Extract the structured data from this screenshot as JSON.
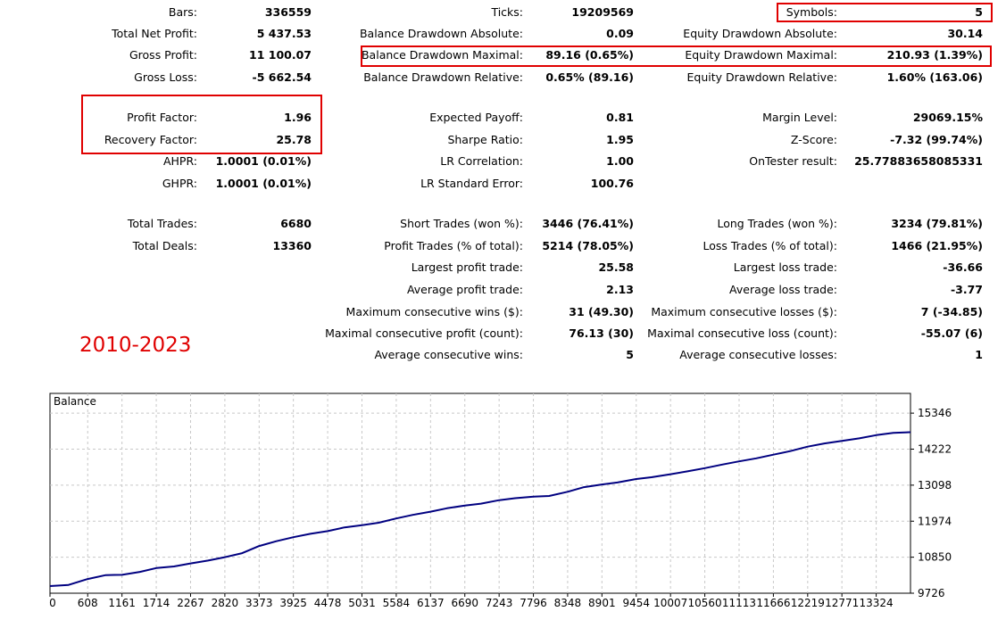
{
  "report": {
    "col1": [
      {
        "label": "Bars:",
        "value": "336559"
      },
      {
        "label": "Total Net Profit:",
        "value": "5 437.53"
      },
      {
        "label": "Gross Profit:",
        "value": "11 100.07"
      },
      {
        "label": "Gross Loss:",
        "value": "-5 662.54"
      },
      {
        "label": "Profit Factor:",
        "value": "1.96"
      },
      {
        "label": "Recovery Factor:",
        "value": "25.78"
      },
      {
        "label": "AHPR:",
        "value": "1.0001 (0.01%)"
      },
      {
        "label": "GHPR:",
        "value": "1.0001 (0.01%)"
      },
      {
        "label": "Total Trades:",
        "value": "6680"
      },
      {
        "label": "Total Deals:",
        "value": "13360"
      }
    ],
    "col2": [
      {
        "label": "Ticks:",
        "value": "19209569"
      },
      {
        "label": "Balance Drawdown Absolute:",
        "value": "0.09"
      },
      {
        "label": "Balance Drawdown Maximal:",
        "value": "89.16 (0.65%)"
      },
      {
        "label": "Balance Drawdown Relative:",
        "value": "0.65% (89.16)"
      },
      {
        "label": "Expected Payoff:",
        "value": "0.81"
      },
      {
        "label": "Sharpe Ratio:",
        "value": "1.95"
      },
      {
        "label": "LR Correlation:",
        "value": "1.00"
      },
      {
        "label": "LR Standard Error:",
        "value": "100.76"
      },
      {
        "label": "Short Trades (won %):",
        "value": "3446 (76.41%)"
      },
      {
        "label": "Profit Trades (% of total):",
        "value": "5214 (78.05%)"
      },
      {
        "label": "Largest profit trade:",
        "value": "25.58"
      },
      {
        "label": "Average profit trade:",
        "value": "2.13"
      },
      {
        "label": "Maximum consecutive wins ($):",
        "value": "31 (49.30)"
      },
      {
        "label": "Maximal consecutive profit (count):",
        "value": "76.13 (30)"
      },
      {
        "label": "Average consecutive wins:",
        "value": "5"
      }
    ],
    "col3": [
      {
        "label": "Symbols:",
        "value": "5"
      },
      {
        "label": "Equity Drawdown Absolute:",
        "value": "30.14"
      },
      {
        "label": "Equity Drawdown Maximal:",
        "value": "210.93 (1.39%)"
      },
      {
        "label": "Equity Drawdown Relative:",
        "value": "1.60% (163.06)"
      },
      {
        "label": "Margin Level:",
        "value": "29069.15%"
      },
      {
        "label": "Z-Score:",
        "value": "-7.32 (99.74%)"
      },
      {
        "label": "OnTester result:",
        "value": "25.77883658085331"
      },
      {
        "label": "Long Trades (won %):",
        "value": "3234 (79.81%)"
      },
      {
        "label": "Loss Trades (% of total):",
        "value": "1466 (21.95%)"
      },
      {
        "label": "Largest loss trade:",
        "value": "-36.66"
      },
      {
        "label": "Average loss trade:",
        "value": "-3.77"
      },
      {
        "label": "Maximum consecutive losses ($):",
        "value": "7 (-34.85)"
      },
      {
        "label": "Maximal consecutive loss (count):",
        "value": "-55.07 (6)"
      },
      {
        "label": "Average consecutive losses:",
        "value": "1"
      }
    ]
  },
  "annotation": {
    "period": "2010-2023",
    "color": "#e00000"
  },
  "chart_data": {
    "type": "line",
    "title": "Balance",
    "x_ticks": [
      0,
      608,
      1161,
      1714,
      2267,
      2820,
      3373,
      3925,
      4478,
      5031,
      5584,
      6137,
      6690,
      7243,
      7796,
      8348,
      8901,
      9454,
      10007,
      10560,
      11113,
      11666,
      12219,
      12771,
      13324
    ],
    "y_ticks": [
      9726,
      10850,
      11974,
      13098,
      14222,
      15346
    ],
    "xlim": [
      0,
      13877
    ],
    "ylim": [
      9726,
      15962
    ],
    "grid": true,
    "line_color": "#000080",
    "series": [
      {
        "x": [
          0,
          300,
          608,
          900,
          1161,
          1450,
          1714,
          2000,
          2267,
          2550,
          2820,
          3100,
          3373,
          3650,
          3925,
          4200,
          4478,
          4750,
          5031,
          5300,
          5584,
          5850,
          6137,
          6400,
          6690,
          6950,
          7243,
          7500,
          7796,
          8050,
          8348,
          8600,
          8901,
          9150,
          9454,
          9700,
          10007,
          10280,
          10560,
          10840,
          11113,
          11390,
          11666,
          11940,
          12219,
          12490,
          12771,
          13050,
          13324,
          13600,
          13877
        ],
        "y": [
          9950,
          9985,
          10170,
          10290,
          10300,
          10390,
          10510,
          10560,
          10655,
          10745,
          10850,
          10975,
          11200,
          11350,
          11475,
          11580,
          11665,
          11780,
          11850,
          11925,
          12060,
          12170,
          12270,
          12375,
          12460,
          12520,
          12630,
          12690,
          12740,
          12760,
          12890,
          13030,
          13120,
          13180,
          13290,
          13345,
          13440,
          13530,
          13630,
          13740,
          13840,
          13935,
          14050,
          14160,
          14300,
          14400,
          14480,
          14560,
          14660,
          14730,
          14750
        ]
      }
    ]
  }
}
